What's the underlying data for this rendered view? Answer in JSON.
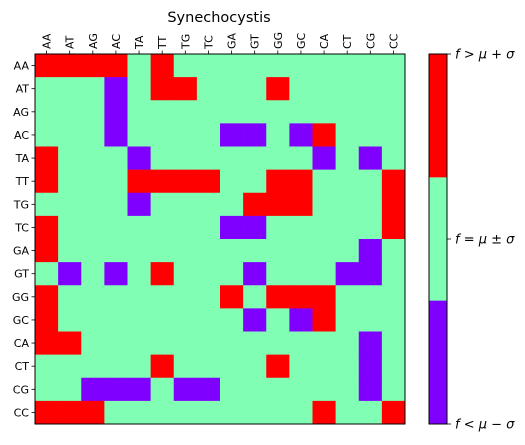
{
  "chart_data": {
    "type": "heatmap",
    "title": "Synechocystis",
    "x_labels": [
      "AA",
      "AT",
      "AG",
      "AC",
      "TA",
      "TT",
      "TG",
      "TC",
      "GA",
      "GT",
      "GG",
      "GC",
      "CA",
      "CT",
      "CG",
      "CC"
    ],
    "y_labels": [
      "AA",
      "AT",
      "AG",
      "AC",
      "TA",
      "TT",
      "TG",
      "TC",
      "GA",
      "GT",
      "GG",
      "GC",
      "CA",
      "CT",
      "CG",
      "CC"
    ],
    "levels": [
      {
        "value": -1,
        "color": "#8000ff",
        "label": "f < μ − σ"
      },
      {
        "value": 0,
        "color": "#80ffb4",
        "label": "f = μ ± σ"
      },
      {
        "value": 1,
        "color": "#ff0000",
        "label": "f > μ + σ"
      }
    ],
    "matrix": [
      [
        1,
        1,
        1,
        1,
        0,
        1,
        0,
        0,
        0,
        0,
        0,
        0,
        0,
        0,
        0,
        0
      ],
      [
        0,
        0,
        0,
        -1,
        0,
        1,
        1,
        0,
        0,
        0,
        1,
        0,
        0,
        0,
        0,
        0
      ],
      [
        0,
        0,
        0,
        -1,
        0,
        0,
        0,
        0,
        0,
        0,
        0,
        0,
        0,
        0,
        0,
        0
      ],
      [
        0,
        0,
        0,
        -1,
        0,
        0,
        0,
        0,
        -1,
        -1,
        0,
        -1,
        1,
        0,
        0,
        0
      ],
      [
        1,
        0,
        0,
        0,
        -1,
        0,
        0,
        0,
        0,
        0,
        0,
        0,
        -1,
        0,
        -1,
        0
      ],
      [
        1,
        0,
        0,
        0,
        1,
        1,
        1,
        1,
        0,
        0,
        1,
        1,
        0,
        0,
        0,
        1
      ],
      [
        0,
        0,
        0,
        0,
        -1,
        0,
        0,
        0,
        0,
        1,
        1,
        1,
        0,
        0,
        0,
        1
      ],
      [
        1,
        0,
        0,
        0,
        0,
        0,
        0,
        0,
        -1,
        -1,
        0,
        0,
        0,
        0,
        0,
        1
      ],
      [
        1,
        0,
        0,
        0,
        0,
        0,
        0,
        0,
        0,
        0,
        0,
        0,
        0,
        0,
        -1,
        0
      ],
      [
        0,
        -1,
        0,
        -1,
        0,
        1,
        0,
        0,
        0,
        -1,
        0,
        0,
        0,
        -1,
        -1,
        0
      ],
      [
        1,
        0,
        0,
        0,
        0,
        0,
        0,
        0,
        1,
        0,
        1,
        1,
        1,
        0,
        0,
        0
      ],
      [
        1,
        0,
        0,
        0,
        0,
        0,
        0,
        0,
        0,
        -1,
        0,
        -1,
        1,
        0,
        0,
        0
      ],
      [
        1,
        1,
        0,
        0,
        0,
        0,
        0,
        0,
        0,
        0,
        0,
        0,
        0,
        0,
        -1,
        0
      ],
      [
        0,
        0,
        0,
        0,
        0,
        1,
        0,
        0,
        0,
        0,
        1,
        0,
        0,
        0,
        -1,
        0
      ],
      [
        0,
        0,
        -1,
        -1,
        -1,
        0,
        -1,
        -1,
        0,
        0,
        0,
        0,
        0,
        0,
        -1,
        0
      ],
      [
        1,
        1,
        1,
        0,
        0,
        0,
        0,
        0,
        0,
        0,
        0,
        0,
        1,
        0,
        0,
        1
      ]
    ],
    "colorbar": {
      "tick_labels": [
        "f < μ − σ",
        "f = μ ± σ",
        "f > μ + σ"
      ]
    }
  }
}
